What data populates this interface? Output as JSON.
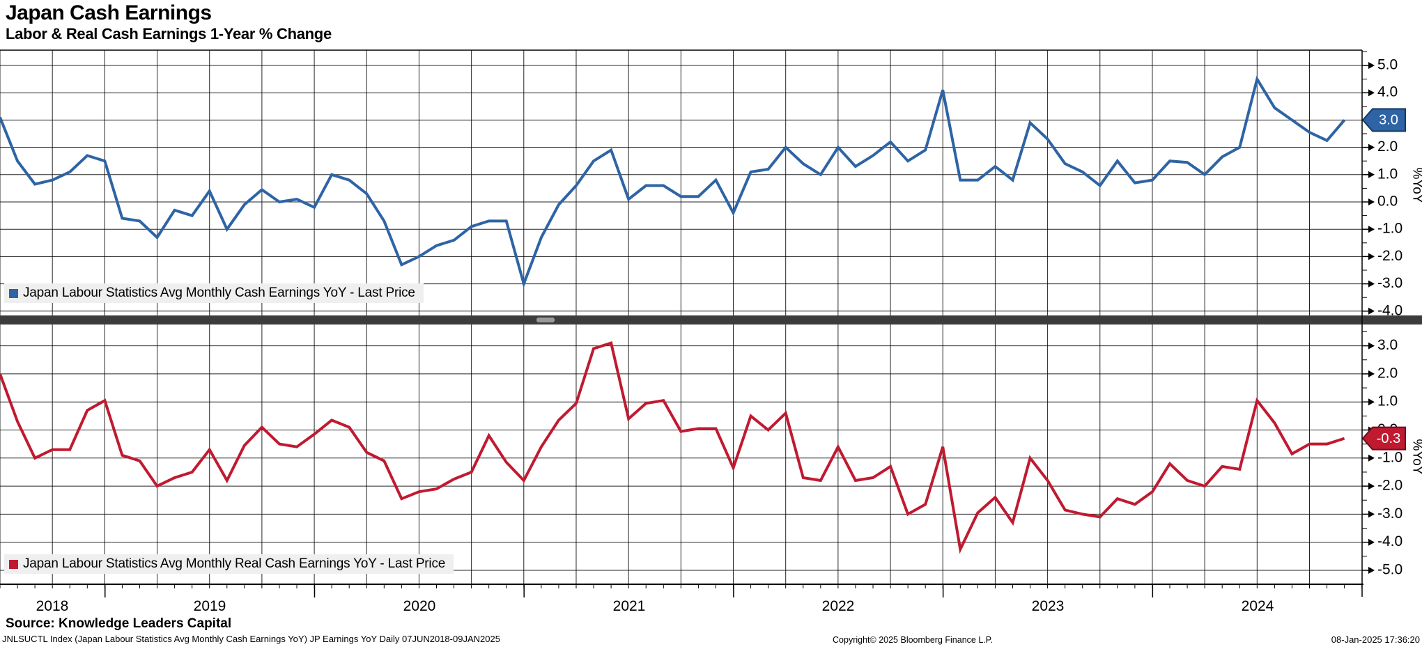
{
  "header": {
    "title": "Japan Cash Earnings",
    "subtitle": "Labor & Real Cash Earnings 1-Year % Change"
  },
  "footer": {
    "source": "Source: Knowledge Leaders Capital",
    "ticker_line": "JNLSUCTL Index (Japan Labour Statistics Avg Monthly Cash Earnings YoY) JP Earnings YoY  Daily 07JUN2018-09JAN2025",
    "copyright": "Copyright© 2025 Bloomberg Finance L.P.",
    "timestamp": "08-Jan-2025 17:36:20"
  },
  "chart_data": {
    "type": "line",
    "x_unit": "month",
    "x_year_labels": [
      "2018",
      "2019",
      "2020",
      "2021",
      "2022",
      "2023",
      "2024"
    ],
    "categories": [
      "2018-06",
      "2018-07",
      "2018-08",
      "2018-09",
      "2018-10",
      "2018-11",
      "2018-12",
      "2019-01",
      "2019-02",
      "2019-03",
      "2019-04",
      "2019-05",
      "2019-06",
      "2019-07",
      "2019-08",
      "2019-09",
      "2019-10",
      "2019-11",
      "2019-12",
      "2020-01",
      "2020-02",
      "2020-03",
      "2020-04",
      "2020-05",
      "2020-06",
      "2020-07",
      "2020-08",
      "2020-09",
      "2020-10",
      "2020-11",
      "2020-12",
      "2021-01",
      "2021-02",
      "2021-03",
      "2021-04",
      "2021-05",
      "2021-06",
      "2021-07",
      "2021-08",
      "2021-09",
      "2021-10",
      "2021-11",
      "2021-12",
      "2022-01",
      "2022-02",
      "2022-03",
      "2022-04",
      "2022-05",
      "2022-06",
      "2022-07",
      "2022-08",
      "2022-09",
      "2022-10",
      "2022-11",
      "2022-12",
      "2023-01",
      "2023-02",
      "2023-03",
      "2023-04",
      "2023-05",
      "2023-06",
      "2023-07",
      "2023-08",
      "2023-09",
      "2023-10",
      "2023-11",
      "2023-12",
      "2024-01",
      "2024-02",
      "2024-03",
      "2024-04",
      "2024-05",
      "2024-06",
      "2024-07",
      "2024-08",
      "2024-09",
      "2024-10",
      "2024-11"
    ],
    "panels": [
      {
        "name": "nominal-cash-earnings",
        "legend": "Japan Labour Statistics Avg Monthly Cash Earnings YoY - Last Price",
        "ylabel": "%YoY",
        "yticks": [
          5.0,
          4.0,
          3.0,
          2.0,
          1.0,
          0.0,
          -1.0,
          -2.0,
          -3.0,
          -4.0
        ],
        "ylim": [
          -4.2,
          5.6
        ],
        "last_price": "3.0",
        "last_price_value": 3.0,
        "color": "#2e64a5",
        "badge_border": "#123a66",
        "values": [
          3.1,
          1.5,
          0.65,
          0.8,
          1.1,
          1.7,
          1.5,
          -0.6,
          -0.7,
          -1.3,
          -0.3,
          -0.5,
          0.4,
          -1.0,
          -0.1,
          0.45,
          0.0,
          0.1,
          -0.2,
          1.0,
          0.8,
          0.3,
          -0.7,
          -2.3,
          -2.0,
          -1.6,
          -1.4,
          -0.9,
          -0.7,
          -0.7,
          -3.0,
          -1.3,
          -0.1,
          0.6,
          1.5,
          1.9,
          0.1,
          0.6,
          0.6,
          0.2,
          0.2,
          0.8,
          -0.4,
          1.1,
          1.2,
          2.0,
          1.4,
          1.0,
          2.0,
          1.3,
          1.7,
          2.2,
          1.5,
          1.9,
          4.1,
          0.8,
          0.8,
          1.3,
          0.8,
          2.9,
          2.3,
          1.4,
          1.1,
          0.6,
          1.5,
          0.7,
          0.8,
          1.5,
          1.45,
          1.0,
          1.65,
          2.0,
          4.5,
          3.45,
          3.0,
          2.55,
          2.25,
          3.0
        ]
      },
      {
        "name": "real-cash-earnings",
        "legend": "Japan Labour Statistics Avg Monthly Real Cash Earnings YoY - Last Price",
        "ylabel": "%YoY",
        "yticks": [
          3.0,
          2.0,
          1.0,
          0.0,
          -1.0,
          -2.0,
          -3.0,
          -4.0,
          -5.0
        ],
        "ylim": [
          -5.5,
          3.8
        ],
        "last_price": "-0.3",
        "last_price_value": -0.3,
        "color": "#c01a31",
        "badge_border": "#6e0d1c",
        "values": [
          2.0,
          0.3,
          -1.0,
          -0.7,
          -0.7,
          0.7,
          1.05,
          -0.9,
          -1.1,
          -2.0,
          -1.7,
          -1.5,
          -0.7,
          -1.8,
          -0.55,
          0.1,
          -0.5,
          -0.6,
          -0.15,
          0.35,
          0.1,
          -0.8,
          -1.1,
          -2.45,
          -2.2,
          -2.1,
          -1.75,
          -1.5,
          -0.2,
          -1.15,
          -1.8,
          -0.6,
          0.35,
          0.95,
          2.9,
          3.1,
          0.4,
          0.95,
          1.05,
          -0.05,
          0.05,
          0.05,
          -1.35,
          0.5,
          0.0,
          0.6,
          -1.7,
          -1.8,
          -0.6,
          -1.8,
          -1.7,
          -1.3,
          -3.0,
          -2.65,
          -0.6,
          -4.25,
          -2.95,
          -2.4,
          -3.3,
          -1.0,
          -1.8,
          -2.85,
          -3.0,
          -3.1,
          -2.45,
          -2.65,
          -2.2,
          -1.2,
          -1.8,
          -2.0,
          -1.3,
          -1.4,
          1.05,
          0.25,
          -0.85,
          -0.5,
          -0.5,
          -0.3
        ]
      }
    ],
    "title": "Japan Cash Earnings",
    "grid": "on",
    "legend_position": "inside-bottom-left"
  }
}
